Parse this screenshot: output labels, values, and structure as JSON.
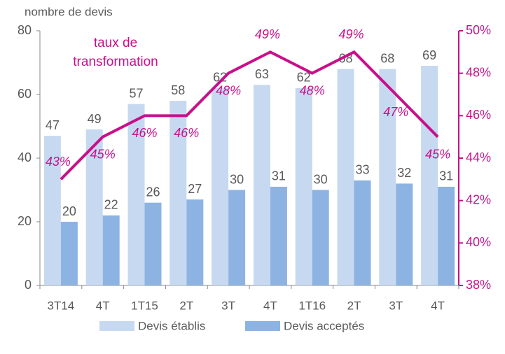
{
  "chart_data": {
    "type": "bar",
    "y_label": "nombre de devis",
    "annotation": "taux de transformation",
    "categories": [
      "3T14",
      "4T",
      "1T15",
      "2T",
      "3T",
      "4T",
      "1T16",
      "2T",
      "3T",
      "4T"
    ],
    "series": [
      {
        "name": "Devis établis",
        "color": "#c6d9f1",
        "values": [
          47,
          49,
          57,
          58,
          62,
          63,
          62,
          68,
          68,
          69
        ]
      },
      {
        "name": "Devis acceptés",
        "color": "#8db3e2",
        "values": [
          20,
          22,
          26,
          27,
          30,
          31,
          30,
          33,
          32,
          31
        ]
      },
      {
        "name": "taux de transformation",
        "type": "line",
        "axis": "y2",
        "color": "#c8108a",
        "values": [
          43,
          45,
          46,
          46,
          48,
          49,
          48,
          49,
          47,
          45
        ],
        "value_labels": [
          "43%",
          "45%",
          "46%",
          "46%",
          "48%",
          "49%",
          "48%",
          "49%",
          "47%",
          "45%"
        ]
      }
    ],
    "ylim": [
      0,
      80
    ],
    "yticks": [
      0,
      20,
      40,
      60,
      80
    ],
    "y2lim": [
      38,
      50
    ],
    "y2ticks": [
      {
        "value": 38,
        "label": "38%"
      },
      {
        "value": 40,
        "label": "40%"
      },
      {
        "value": 42,
        "label": "42%"
      },
      {
        "value": 44,
        "label": "44%"
      },
      {
        "value": 46,
        "label": "46%"
      },
      {
        "value": 48,
        "label": "48%"
      },
      {
        "value": 50,
        "label": "50%"
      }
    ],
    "legend": "bottom"
  }
}
